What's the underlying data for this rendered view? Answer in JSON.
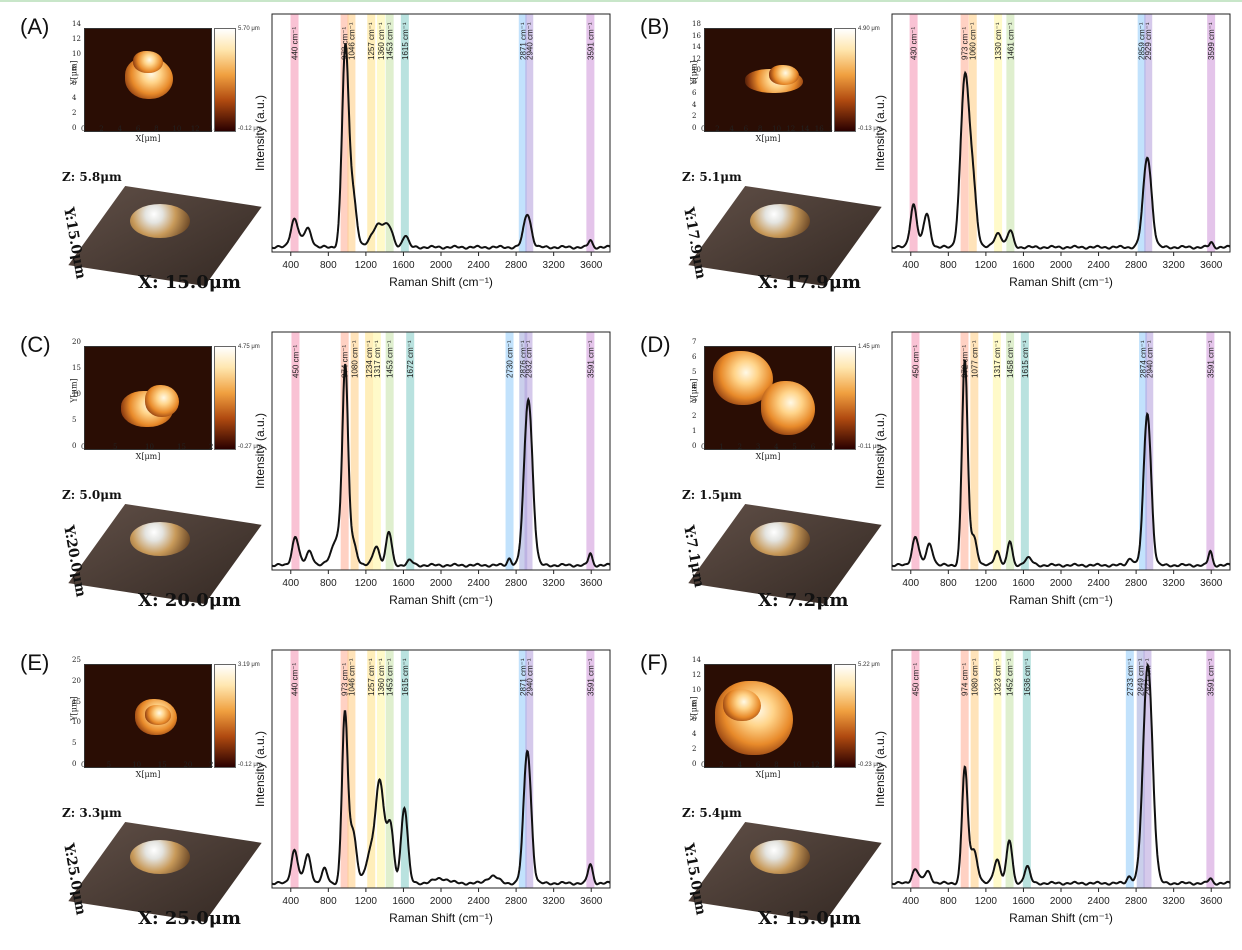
{
  "panels": [
    {
      "label": "(A)",
      "afm": {
        "xlabel": "X[μm]",
        "ylabel": "Y[μm]",
        "xticks": [
          "0",
          "2",
          "4",
          "6",
          "8",
          "10",
          "12",
          "14"
        ],
        "yticks": [
          "0",
          "2",
          "4",
          "6",
          "8",
          "10",
          "12",
          "14"
        ],
        "cbar_top": "5.70 μm",
        "cbar_bottom": "-0.12 μm"
      },
      "afm3d": {
        "z": "Z: 5.8μm",
        "x": "X: 15.0μm",
        "y": "Y:15.0μm"
      }
    },
    {
      "label": "(B)",
      "afm": {
        "xlabel": "X[μm]",
        "ylabel": "Y[μm]",
        "xticks": [
          "0",
          "2",
          "4",
          "6",
          "8",
          "10",
          "12",
          "14",
          "16",
          "18"
        ],
        "yticks": [
          "0",
          "2",
          "4",
          "6",
          "8",
          "10",
          "12",
          "14",
          "16",
          "18"
        ],
        "cbar_top": "4.90 μm",
        "cbar_bottom": "-0.13 μm"
      },
      "afm3d": {
        "z": "Z: 5.1μm",
        "x": "X: 17.9μm",
        "y": "Y:17.9μm"
      }
    },
    {
      "label": "(C)",
      "afm": {
        "xlabel": "X[μm]",
        "ylabel": "Y[μm]",
        "xticks": [
          "0",
          "5",
          "10",
          "15",
          "20"
        ],
        "yticks": [
          "0",
          "5",
          "10",
          "15",
          "20"
        ],
        "cbar_top": "4.75 μm",
        "cbar_bottom": "-0.27 μm"
      },
      "afm3d": {
        "z": "Z: 5.0μm",
        "x": "X: 20.0μm",
        "y": "Y:20.0μm"
      }
    },
    {
      "label": "(D)",
      "afm": {
        "xlabel": "X[μm]",
        "ylabel": "Y[μm]",
        "xticks": [
          "0",
          "1",
          "2",
          "3",
          "4",
          "5",
          "6",
          "7"
        ],
        "yticks": [
          "0",
          "1",
          "2",
          "3",
          "4",
          "5",
          "6",
          "7"
        ],
        "cbar_top": "1.45 μm",
        "cbar_bottom": "-0.11 μm"
      },
      "afm3d": {
        "z": "Z: 1.5μm",
        "x": "X: 7.2μm",
        "y": "Y:7.1μm"
      }
    },
    {
      "label": "(E)",
      "afm": {
        "xlabel": "X[μm]",
        "ylabel": "Y[μm]",
        "xticks": [
          "0",
          "5",
          "10",
          "15",
          "20",
          "25"
        ],
        "yticks": [
          "0",
          "5",
          "10",
          "15",
          "20",
          "25"
        ],
        "cbar_top": "3.19 μm",
        "cbar_bottom": "-0.12 μm"
      },
      "afm3d": {
        "z": "Z: 3.3μm",
        "x": "X: 25.0μm",
        "y": "Y:25.0μm"
      }
    },
    {
      "label": "(F)",
      "afm": {
        "xlabel": "X[μm]",
        "ylabel": "Y[μm]",
        "xticks": [
          "0",
          "2",
          "4",
          "6",
          "8",
          "10",
          "12",
          "14"
        ],
        "yticks": [
          "0",
          "2",
          "4",
          "6",
          "8",
          "10",
          "12",
          "14"
        ],
        "cbar_top": "5.22 μm",
        "cbar_bottom": "-0.23 μm"
      },
      "afm3d": {
        "z": "Z: 5.4μm",
        "x": "X: 15.0μm",
        "y": "Y:15.0μm"
      }
    }
  ],
  "chart_data": [
    {
      "type": "line",
      "panel": "(A)",
      "xlabel": "Raman Shift (cm⁻¹)",
      "ylabel": "Intensity (a.u.)",
      "xlim": [
        200,
        3800
      ],
      "xticks": [
        400,
        800,
        1200,
        1600,
        2000,
        2400,
        2800,
        3200,
        3600
      ],
      "bands": [
        {
          "x": 440,
          "label": "440 cm⁻¹",
          "color": "#f48fb1"
        },
        {
          "x": 973,
          "label": "973 cm⁻¹",
          "color": "#ffab91"
        },
        {
          "x": 1046,
          "label": "1046 cm⁻¹",
          "color": "#ffcc80"
        },
        {
          "x": 1257,
          "label": "1257 cm⁻¹",
          "color": "#ffe082"
        },
        {
          "x": 1360,
          "label": "1360 cm⁻¹",
          "color": "#fff59d"
        },
        {
          "x": 1453,
          "label": "1453 cm⁻¹",
          "color": "#c5e1a5"
        },
        {
          "x": 1615,
          "label": "1615 cm⁻¹",
          "color": "#80cbc4"
        },
        {
          "x": 2871,
          "label": "2871 cm⁻¹",
          "color": "#90caf9"
        },
        {
          "x": 2940,
          "label": "2940 cm⁻¹",
          "color": "#b39ddb"
        },
        {
          "x": 3591,
          "label": "3591 cm⁻¹",
          "color": "#ce93d8"
        }
      ],
      "peaks": [
        [
          440,
          0.12,
          40
        ],
        [
          580,
          0.08,
          40
        ],
        [
          980,
          0.82,
          35
        ],
        [
          1060,
          0.22,
          40
        ],
        [
          1340,
          0.1,
          70
        ],
        [
          1450,
          0.06,
          40
        ],
        [
          1620,
          0.05,
          30
        ],
        [
          2920,
          0.14,
          40
        ],
        [
          3590,
          0.03,
          20
        ]
      ]
    },
    {
      "type": "line",
      "panel": "(B)",
      "xlabel": "Raman Shift (cm⁻¹)",
      "ylabel": "Intensity (a.u.)",
      "xlim": [
        200,
        3800
      ],
      "xticks": [
        400,
        800,
        1200,
        1600,
        2000,
        2400,
        2800,
        3200,
        3600
      ],
      "bands": [
        {
          "x": 430,
          "label": "430 cm⁻¹",
          "color": "#f48fb1"
        },
        {
          "x": 973,
          "label": "973 cm⁻¹",
          "color": "#ffab91"
        },
        {
          "x": 1060,
          "label": "1060 cm⁻¹",
          "color": "#ffcc80"
        },
        {
          "x": 1330,
          "label": "1330 cm⁻¹",
          "color": "#fff59d"
        },
        {
          "x": 1461,
          "label": "1461 cm⁻¹",
          "color": "#c5e1a5"
        },
        {
          "x": 2859,
          "label": "2859 cm⁻¹",
          "color": "#90caf9"
        },
        {
          "x": 2929,
          "label": "2929 cm⁻¹",
          "color": "#b39ddb"
        },
        {
          "x": 3599,
          "label": "3599 cm⁻¹",
          "color": "#ce93d8"
        }
      ],
      "peaks": [
        [
          430,
          0.18,
          35
        ],
        [
          570,
          0.14,
          35
        ],
        [
          975,
          0.7,
          45
        ],
        [
          1060,
          0.25,
          40
        ],
        [
          1330,
          0.06,
          40
        ],
        [
          1460,
          0.07,
          30
        ],
        [
          2920,
          0.38,
          45
        ],
        [
          3600,
          0.02,
          20
        ]
      ]
    },
    {
      "type": "line",
      "panel": "(C)",
      "xlabel": "Raman Shift (cm⁻¹)",
      "ylabel": "Intensity (a.u.)",
      "xlim": [
        200,
        3800
      ],
      "xticks": [
        400,
        800,
        1200,
        1600,
        2000,
        2400,
        2800,
        3200,
        3600
      ],
      "bands": [
        {
          "x": 450,
          "label": "450 cm⁻¹",
          "color": "#f48fb1"
        },
        {
          "x": 974,
          "label": "974 cm⁻¹",
          "color": "#ffab91"
        },
        {
          "x": 1080,
          "label": "1080 cm⁻¹",
          "color": "#ffcc80"
        },
        {
          "x": 1234,
          "label": "1234 cm⁻¹",
          "color": "#ffe082"
        },
        {
          "x": 1317,
          "label": "1317 cm⁻¹",
          "color": "#fff59d"
        },
        {
          "x": 1453,
          "label": "1453 cm⁻¹",
          "color": "#c5e1a5"
        },
        {
          "x": 1672,
          "label": "1672 cm⁻¹",
          "color": "#80cbc4"
        },
        {
          "x": 2730,
          "label": "2730 cm⁻¹",
          "color": "#90caf9"
        },
        {
          "x": 2876,
          "label": "2876 cm⁻¹",
          "color": "#9fa8da"
        },
        {
          "x": 2932,
          "label": "2932 cm⁻¹",
          "color": "#b39ddb"
        },
        {
          "x": 3591,
          "label": "3591 cm⁻¹",
          "color": "#ce93d8"
        }
      ],
      "peaks": [
        [
          450,
          0.12,
          35
        ],
        [
          600,
          0.06,
          35
        ],
        [
          900,
          0.12,
          60
        ],
        [
          980,
          0.78,
          30
        ],
        [
          1060,
          0.1,
          40
        ],
        [
          1310,
          0.08,
          35
        ],
        [
          1445,
          0.14,
          30
        ],
        [
          1670,
          0.02,
          30
        ],
        [
          2730,
          0.03,
          20
        ],
        [
          2930,
          0.7,
          45
        ],
        [
          3590,
          0.05,
          20
        ]
      ]
    },
    {
      "type": "line",
      "panel": "(D)",
      "xlabel": "Raman Shift (cm⁻¹)",
      "ylabel": "Intensity (a.u.)",
      "xlim": [
        200,
        3800
      ],
      "xticks": [
        400,
        800,
        1200,
        1600,
        2000,
        2400,
        2800,
        3200,
        3600
      ],
      "bands": [
        {
          "x": 450,
          "label": "450 cm⁻¹",
          "color": "#f48fb1"
        },
        {
          "x": 972,
          "label": "972 cm⁻¹",
          "color": "#ffab91"
        },
        {
          "x": 1077,
          "label": "1077 cm⁻¹",
          "color": "#ffcc80"
        },
        {
          "x": 1317,
          "label": "1317 cm⁻¹",
          "color": "#fff59d"
        },
        {
          "x": 1458,
          "label": "1458 cm⁻¹",
          "color": "#c5e1a5"
        },
        {
          "x": 1615,
          "label": "1615 cm⁻¹",
          "color": "#80cbc4"
        },
        {
          "x": 2874,
          "label": "2874 cm⁻¹",
          "color": "#90caf9"
        },
        {
          "x": 2940,
          "label": "2940 cm⁻¹",
          "color": "#b39ddb"
        },
        {
          "x": 3591,
          "label": "3591 cm⁻¹",
          "color": "#ce93d8"
        }
      ],
      "peaks": [
        [
          450,
          0.12,
          35
        ],
        [
          600,
          0.09,
          35
        ],
        [
          975,
          0.86,
          30
        ],
        [
          1070,
          0.12,
          35
        ],
        [
          1320,
          0.06,
          30
        ],
        [
          1455,
          0.1,
          25
        ],
        [
          1650,
          0.03,
          40
        ],
        [
          2740,
          0.03,
          30
        ],
        [
          2920,
          0.64,
          40
        ],
        [
          3590,
          0.06,
          20
        ]
      ]
    },
    {
      "type": "line",
      "panel": "(E)",
      "xlabel": "Raman Shift (cm⁻¹)",
      "ylabel": "Intensity (a.u.)",
      "xlim": [
        200,
        3800
      ],
      "xticks": [
        400,
        800,
        1200,
        1600,
        2000,
        2400,
        2800,
        3200,
        3600
      ],
      "bands": [
        {
          "x": 440,
          "label": "440 cm⁻¹",
          "color": "#f48fb1"
        },
        {
          "x": 973,
          "label": "973 cm⁻¹",
          "color": "#ffab91"
        },
        {
          "x": 1046,
          "label": "1046 cm⁻¹",
          "color": "#ffcc80"
        },
        {
          "x": 1257,
          "label": "1257 cm⁻¹",
          "color": "#ffe082"
        },
        {
          "x": 1360,
          "label": "1360 cm⁻¹",
          "color": "#fff59d"
        },
        {
          "x": 1453,
          "label": "1453 cm⁻¹",
          "color": "#c5e1a5"
        },
        {
          "x": 1615,
          "label": "1615 cm⁻¹",
          "color": "#80cbc4"
        },
        {
          "x": 2871,
          "label": "2871 cm⁻¹",
          "color": "#90caf9"
        },
        {
          "x": 2940,
          "label": "2940 cm⁻¹",
          "color": "#b39ddb"
        },
        {
          "x": 3591,
          "label": "3591 cm⁻¹",
          "color": "#ce93d8"
        }
      ],
      "peaks": [
        [
          440,
          0.14,
          35
        ],
        [
          580,
          0.12,
          35
        ],
        [
          760,
          0.06,
          30
        ],
        [
          975,
          0.7,
          30
        ],
        [
          1060,
          0.22,
          40
        ],
        [
          1250,
          0.12,
          50
        ],
        [
          1350,
          0.42,
          45
        ],
        [
          1460,
          0.24,
          35
        ],
        [
          1610,
          0.32,
          35
        ],
        [
          2000,
          0.02,
          80
        ],
        [
          2550,
          0.03,
          60
        ],
        [
          2920,
          0.56,
          40
        ],
        [
          3590,
          0.08,
          25
        ]
      ]
    },
    {
      "type": "line",
      "panel": "(F)",
      "xlabel": "Raman Shift (cm⁻¹)",
      "ylabel": "Intensity (a.u.)",
      "xlim": [
        200,
        3800
      ],
      "xticks": [
        400,
        800,
        1200,
        1600,
        2000,
        2400,
        2800,
        3200,
        3600
      ],
      "bands": [
        {
          "x": 450,
          "label": "450 cm⁻¹",
          "color": "#f48fb1"
        },
        {
          "x": 974,
          "label": "974 cm⁻¹",
          "color": "#ffab91"
        },
        {
          "x": 1080,
          "label": "1080 cm⁻¹",
          "color": "#ffcc80"
        },
        {
          "x": 1323,
          "label": "1323 cm⁻¹",
          "color": "#fff59d"
        },
        {
          "x": 1452,
          "label": "1452 cm⁻¹",
          "color": "#c5e1a5"
        },
        {
          "x": 1636,
          "label": "1636 cm⁻¹",
          "color": "#80cbc4"
        },
        {
          "x": 2733,
          "label": "2733 cm⁻¹",
          "color": "#90caf9"
        },
        {
          "x": 2849,
          "label": "2849 cm⁻¹",
          "color": "#9fa8da"
        },
        {
          "x": 2921,
          "label": "2921 cm⁻¹",
          "color": "#b39ddb"
        },
        {
          "x": 3591,
          "label": "3591 cm⁻¹",
          "color": "#ce93d8"
        }
      ],
      "peaks": [
        [
          450,
          0.06,
          35
        ],
        [
          580,
          0.05,
          35
        ],
        [
          975,
          0.48,
          30
        ],
        [
          1070,
          0.14,
          40
        ],
        [
          1320,
          0.1,
          35
        ],
        [
          1450,
          0.18,
          30
        ],
        [
          1640,
          0.07,
          30
        ],
        [
          2730,
          0.03,
          25
        ],
        [
          2925,
          0.92,
          50
        ],
        [
          3590,
          0.02,
          20
        ]
      ]
    }
  ]
}
